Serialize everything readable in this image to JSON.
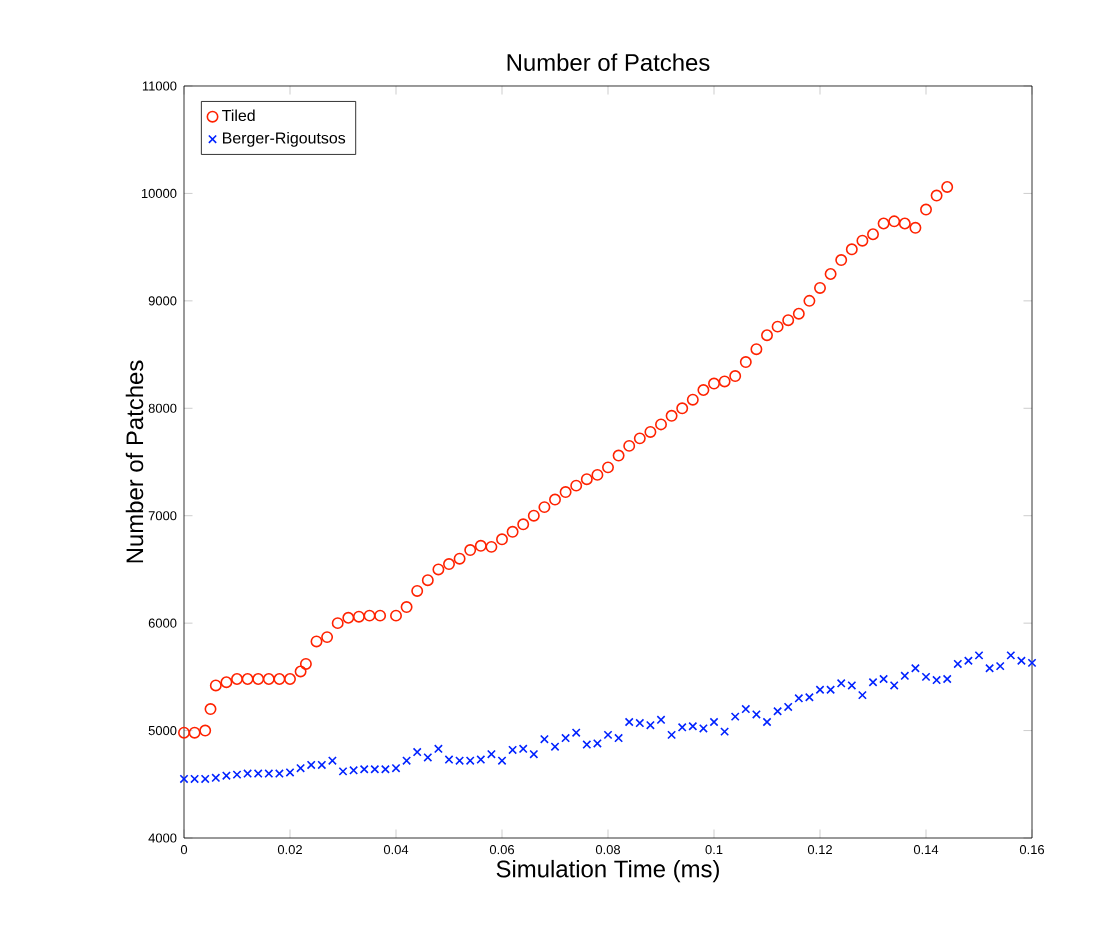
{
  "chart_data": {
    "type": "scatter",
    "title": "Number of Patches",
    "xlabel": "Simulation Time (ms)",
    "ylabel": "Number of Patches",
    "xlim": [
      0,
      0.16
    ],
    "xticks": [
      0,
      0.02,
      0.04,
      0.06,
      0.08,
      0.1,
      0.12,
      0.14,
      0.16
    ],
    "ylim": [
      4000,
      11000
    ],
    "yticks": [
      4000,
      5000,
      6000,
      7000,
      8000,
      9000,
      10000,
      11000
    ],
    "grid": false,
    "legend": "top left",
    "series": [
      {
        "name": "Tiled",
        "color": "#ff2200",
        "marker": "circle",
        "x": [
          0,
          0.002,
          0.004,
          0.005,
          0.006,
          0.008,
          0.01,
          0.012,
          0.014,
          0.016,
          0.018,
          0.02,
          0.022,
          0.023,
          0.025,
          0.027,
          0.029,
          0.031,
          0.033,
          0.035,
          0.037,
          0.04,
          0.042,
          0.044,
          0.046,
          0.048,
          0.05,
          0.052,
          0.054,
          0.056,
          0.058,
          0.06,
          0.062,
          0.064,
          0.066,
          0.068,
          0.07,
          0.072,
          0.074,
          0.076,
          0.078,
          0.08,
          0.082,
          0.084,
          0.086,
          0.088,
          0.09,
          0.092,
          0.094,
          0.096,
          0.098,
          0.1,
          0.102,
          0.104,
          0.106,
          0.108,
          0.11,
          0.112,
          0.114,
          0.116,
          0.118,
          0.12,
          0.122,
          0.124,
          0.126,
          0.128,
          0.13,
          0.132,
          0.134,
          0.136,
          0.138,
          0.14,
          0.142,
          0.144
        ],
        "values": [
          4980,
          4980,
          5000,
          5200,
          5420,
          5450,
          5480,
          5480,
          5480,
          5480,
          5480,
          5480,
          5550,
          5620,
          5830,
          5870,
          6000,
          6050,
          6060,
          6070,
          6070,
          6070,
          6150,
          6300,
          6400,
          6500,
          6550,
          6600,
          6680,
          6720,
          6710,
          6780,
          6850,
          6920,
          7000,
          7080,
          7150,
          7220,
          7280,
          7340,
          7380,
          7450,
          7560,
          7650,
          7720,
          7780,
          7850,
          7930,
          8000,
          8080,
          8170,
          8230,
          8250,
          8300,
          8430,
          8550,
          8680,
          8760,
          8820,
          8880,
          9000,
          9120,
          9250,
          9380,
          9480,
          9560,
          9620,
          9720,
          9740,
          9720,
          9680,
          9850,
          9980,
          10060
        ]
      },
      {
        "name": "Berger-Rigoutsos",
        "color": "#0022ff",
        "marker": "cross",
        "x": [
          0,
          0.002,
          0.004,
          0.006,
          0.008,
          0.01,
          0.012,
          0.014,
          0.016,
          0.018,
          0.02,
          0.022,
          0.024,
          0.026,
          0.028,
          0.03,
          0.032,
          0.034,
          0.036,
          0.038,
          0.04,
          0.042,
          0.044,
          0.046,
          0.048,
          0.05,
          0.052,
          0.054,
          0.056,
          0.058,
          0.06,
          0.062,
          0.064,
          0.066,
          0.068,
          0.07,
          0.072,
          0.074,
          0.076,
          0.078,
          0.08,
          0.082,
          0.084,
          0.086,
          0.088,
          0.09,
          0.092,
          0.094,
          0.096,
          0.098,
          0.1,
          0.102,
          0.104,
          0.106,
          0.108,
          0.11,
          0.112,
          0.114,
          0.116,
          0.118,
          0.12,
          0.122,
          0.124,
          0.126,
          0.128,
          0.13,
          0.132,
          0.134,
          0.136,
          0.138,
          0.14,
          0.142,
          0.144,
          0.146,
          0.148,
          0.15,
          0.152,
          0.154,
          0.156,
          0.158,
          0.16
        ],
        "values": [
          4550,
          4550,
          4550,
          4560,
          4580,
          4590,
          4600,
          4600,
          4600,
          4600,
          4610,
          4650,
          4680,
          4680,
          4720,
          4620,
          4630,
          4640,
          4640,
          4640,
          4650,
          4720,
          4800,
          4750,
          4830,
          4730,
          4720,
          4720,
          4730,
          4780,
          4720,
          4820,
          4830,
          4780,
          4920,
          4850,
          4930,
          4980,
          4870,
          4880,
          4960,
          4930,
          5080,
          5070,
          5050,
          5100,
          4960,
          5030,
          5040,
          5020,
          5080,
          4990,
          5130,
          5200,
          5150,
          5080,
          5180,
          5220,
          5300,
          5310,
          5380,
          5380,
          5440,
          5420,
          5330,
          5450,
          5480,
          5420,
          5510,
          5580,
          5500,
          5470,
          5480,
          5620,
          5650,
          5700,
          5580,
          5600,
          5700,
          5650,
          5630
        ]
      }
    ]
  }
}
